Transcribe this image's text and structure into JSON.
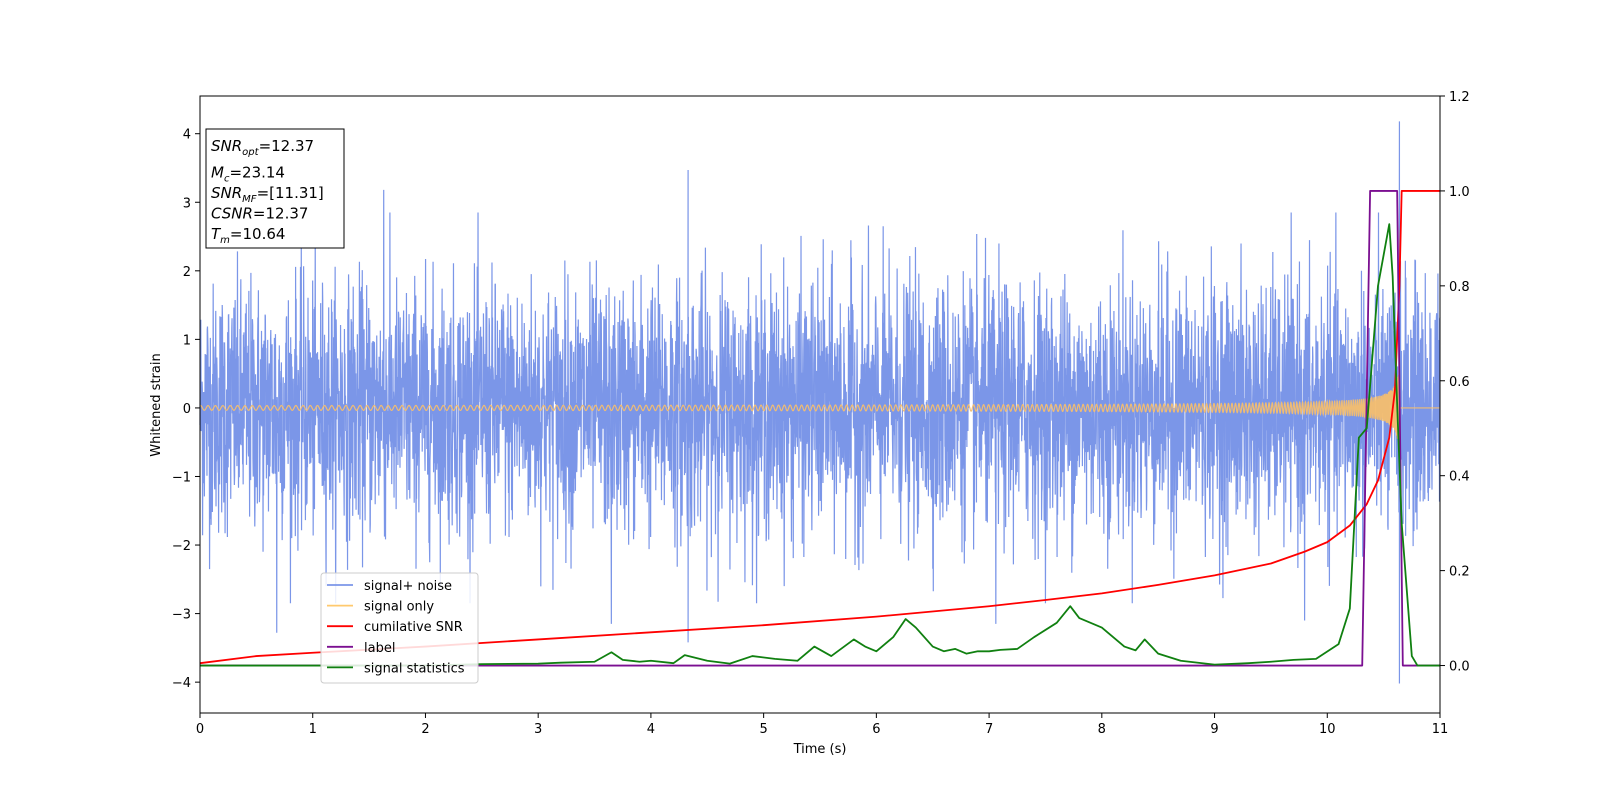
{
  "chart_data": {
    "type": "line",
    "xlabel": "Time (s)",
    "ylabel_left": "Whitened strain",
    "xlim": [
      0,
      11
    ],
    "ylim_left": [
      -4.45,
      4.55
    ],
    "ylim_right": [
      -0.1,
      1.2
    ],
    "x_ticks": [
      0,
      1,
      2,
      3,
      4,
      5,
      6,
      7,
      8,
      9,
      10,
      11
    ],
    "y_ticks_left": [
      {
        "value": 4,
        "label": "4"
      },
      {
        "value": 3,
        "label": "3"
      },
      {
        "value": 2,
        "label": "2"
      },
      {
        "value": 1,
        "label": "1"
      },
      {
        "value": 0,
        "label": "0"
      },
      {
        "value": -1,
        "label": "−1"
      },
      {
        "value": -2,
        "label": "−2"
      },
      {
        "value": -3,
        "label": "−3"
      },
      {
        "value": -4,
        "label": "−4"
      }
    ],
    "y_ticks_right": [
      {
        "value": 1.2,
        "label": "1.2"
      },
      {
        "value": 1.0,
        "label": "1.0"
      },
      {
        "value": 0.8,
        "label": "0.8"
      },
      {
        "value": 0.6,
        "label": "0.6"
      },
      {
        "value": 0.4,
        "label": "0.4"
      },
      {
        "value": 0.2,
        "label": "0.2"
      },
      {
        "value": 0.0,
        "label": "0.0"
      }
    ],
    "grid": false,
    "legend_position": "lower-left",
    "annotation": {
      "position": "top-left",
      "lines": [
        {
          "base": "SNR",
          "sub": "opt",
          "value": "=12.37"
        },
        {
          "base": "M",
          "sub": "c",
          "value": "=23.14"
        },
        {
          "base": "SNR",
          "sub": "MF",
          "value": "=[11.31]"
        },
        {
          "base": "CSNR",
          "sub": "",
          "value": "=12.37"
        },
        {
          "base": "T",
          "sub": "m",
          "value": "=10.64"
        }
      ]
    },
    "series": [
      {
        "name": "signal+ noise",
        "axis": "left",
        "color": "#7b96e8",
        "kind": "noise",
        "amplitude_std": 0.9,
        "peaks": [
          {
            "x": 0.68,
            "y": -3.28
          },
          {
            "x": 1.63,
            "y": 3.18
          },
          {
            "x": 4.33,
            "y": 3.47
          },
          {
            "x": 4.33,
            "y": -3.42
          },
          {
            "x": 3.65,
            "y": -3.15
          },
          {
            "x": 10.64,
            "y": 4.18
          },
          {
            "x": 10.64,
            "y": -4.02
          },
          {
            "x": 7.06,
            "y": -3.15
          },
          {
            "x": 9.8,
            "y": -3.1
          }
        ]
      },
      {
        "name": "signal only",
        "axis": "left",
        "color": "#f5be6e",
        "kind": "chirp",
        "merger_time": 10.64,
        "peak_amplitude": 1.6
      },
      {
        "name": "cumilative SNR",
        "axis": "right",
        "color": "#ff0000",
        "x": [
          0,
          0.5,
          1,
          2,
          3,
          4,
          5,
          6,
          7,
          7.5,
          8,
          8.5,
          9,
          9.5,
          9.8,
          10,
          10.2,
          10.35,
          10.45,
          10.55,
          10.6,
          10.64,
          10.66,
          11
        ],
        "y": [
          0.005,
          0.02,
          0.027,
          0.04,
          0.055,
          0.07,
          0.085,
          0.103,
          0.125,
          0.138,
          0.152,
          0.17,
          0.19,
          0.215,
          0.24,
          0.26,
          0.295,
          0.34,
          0.39,
          0.48,
          0.58,
          0.8,
          1.0,
          1.0
        ]
      },
      {
        "name": "label",
        "axis": "right",
        "color": "#7b0f91",
        "x": [
          0,
          10.31,
          10.38,
          10.62,
          10.67,
          11
        ],
        "y": [
          0,
          0,
          1,
          1,
          0,
          0
        ]
      },
      {
        "name": "signal statistics",
        "axis": "right",
        "color": "#108010",
        "x": [
          0,
          1,
          2,
          2.5,
          3,
          3.2,
          3.5,
          3.65,
          3.75,
          3.9,
          4,
          4.2,
          4.3,
          4.5,
          4.7,
          4.9,
          5.1,
          5.3,
          5.45,
          5.6,
          5.8,
          5.9,
          6.0,
          6.15,
          6.26,
          6.35,
          6.5,
          6.6,
          6.7,
          6.8,
          6.9,
          7.0,
          7.1,
          7.25,
          7.4,
          7.6,
          7.72,
          7.8,
          7.9,
          8.0,
          8.2,
          8.3,
          8.38,
          8.5,
          8.7,
          9.0,
          9.3,
          9.5,
          9.7,
          9.9,
          10.1,
          10.2,
          10.28,
          10.35,
          10.45,
          10.55,
          10.58,
          10.62,
          10.66,
          10.75,
          10.8,
          11
        ],
        "y": [
          0,
          0,
          0,
          0.003,
          0.004,
          0.006,
          0.008,
          0.028,
          0.012,
          0.008,
          0.01,
          0.005,
          0.022,
          0.01,
          0.004,
          0.02,
          0.014,
          0.01,
          0.04,
          0.02,
          0.055,
          0.04,
          0.03,
          0.06,
          0.098,
          0.08,
          0.04,
          0.03,
          0.035,
          0.025,
          0.03,
          0.03,
          0.033,
          0.035,
          0.06,
          0.09,
          0.125,
          0.1,
          0.09,
          0.08,
          0.04,
          0.032,
          0.055,
          0.025,
          0.01,
          0.002,
          0.005,
          0.008,
          0.012,
          0.014,
          0.045,
          0.12,
          0.48,
          0.5,
          0.8,
          0.93,
          0.82,
          0.55,
          0.3,
          0.02,
          0,
          0
        ]
      }
    ]
  }
}
